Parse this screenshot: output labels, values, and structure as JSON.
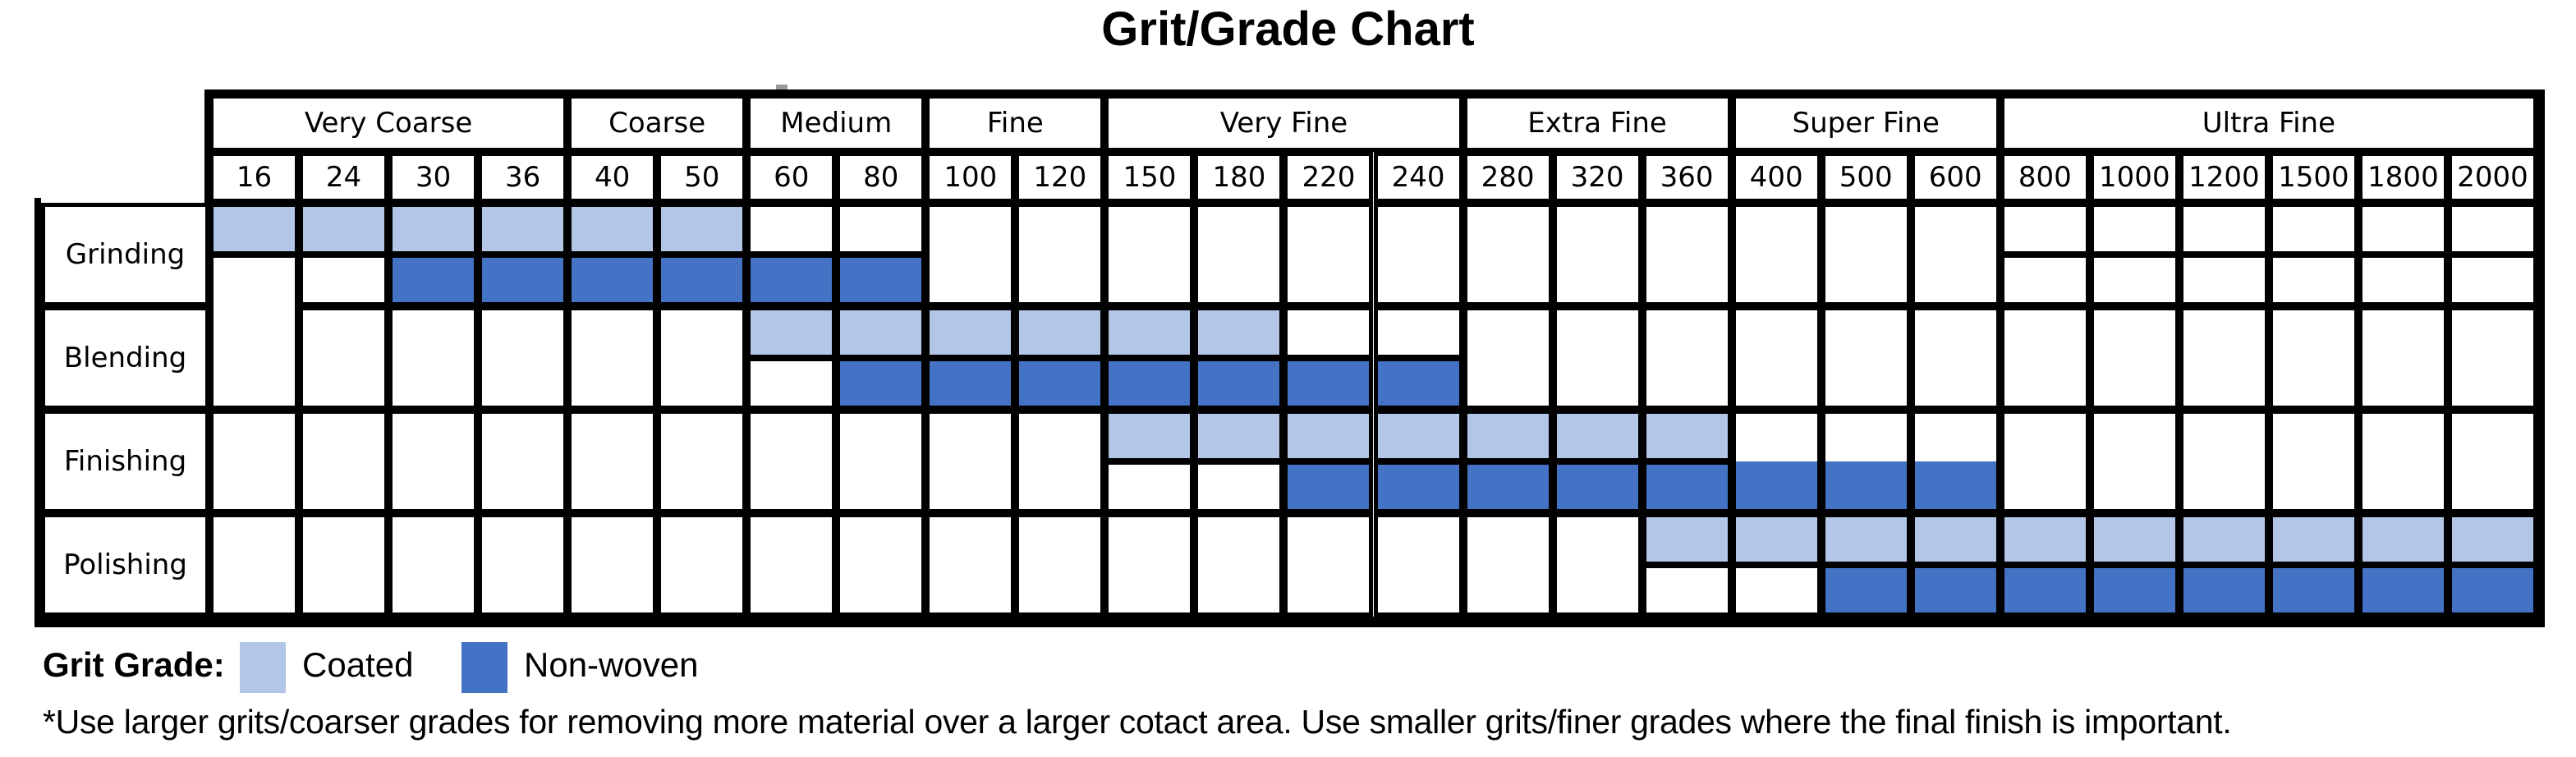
{
  "title": "Grit/Grade Chart",
  "header": {
    "categories": [
      {
        "label": "Very Coarse",
        "grits": [
          16,
          24,
          30,
          36
        ]
      },
      {
        "label": "Coarse",
        "grits": [
          40,
          50
        ]
      },
      {
        "label": "Medium",
        "grits": [
          60,
          80
        ]
      },
      {
        "label": "Fine",
        "grits": [
          100,
          120
        ]
      },
      {
        "label": "Very Fine",
        "grits": [
          150,
          180,
          220,
          240
        ]
      },
      {
        "label": "Extra Fine",
        "grits": [
          280,
          320,
          360
        ]
      },
      {
        "label": "Super Fine",
        "grits": [
          400,
          500,
          600
        ]
      },
      {
        "label": "Ultra Fine",
        "grits": [
          800,
          1000,
          1200,
          1500,
          1800,
          2000
        ]
      }
    ]
  },
  "rows": [
    {
      "label": "Grinding",
      "coated": [
        16,
        24,
        30,
        36,
        40,
        50
      ],
      "non_woven": [
        30,
        36,
        40,
        50,
        60,
        80
      ]
    },
    {
      "label": "Blending",
      "coated": [
        60,
        80,
        100,
        120,
        150,
        180
      ],
      "non_woven": [
        80,
        100,
        120,
        150,
        180,
        220,
        240
      ]
    },
    {
      "label": "Finishing",
      "coated": [
        150,
        180,
        220,
        240,
        280,
        320,
        360
      ],
      "non_woven": [
        220,
        240,
        280,
        320,
        360,
        400,
        500,
        600
      ]
    },
    {
      "label": "Polishing",
      "coated": [
        360,
        400,
        500,
        600,
        800,
        1000,
        1200,
        1500,
        1800,
        2000
      ],
      "non_woven": [
        500,
        600,
        800,
        1000,
        1200,
        1500,
        1800,
        2000
      ]
    }
  ],
  "legend": {
    "label": "Grit Grade:",
    "items": [
      {
        "label": "Coated",
        "color": "#b4c6e7"
      },
      {
        "label": "Non-woven",
        "color": "#4472c4"
      }
    ]
  },
  "footnote": "*Use larger grits/coarser grades for removing more material over a larger cotact area. Use smaller grits/finer grades where the final finish is important.",
  "colors": {
    "coated": "#b4c6e7",
    "non_woven": "#4472c4",
    "border": "#000000",
    "background": "#ffffff"
  },
  "chart_data": {
    "type": "table",
    "title": "Grit/Grade Chart",
    "columns": [
      16,
      24,
      30,
      36,
      40,
      50,
      60,
      80,
      100,
      120,
      150,
      180,
      220,
      240,
      280,
      320,
      360,
      400,
      500,
      600,
      800,
      1000,
      1200,
      1500,
      1800,
      2000
    ],
    "column_groups": [
      {
        "label": "Very Coarse",
        "columns": [
          16,
          24,
          30,
          36
        ]
      },
      {
        "label": "Coarse",
        "columns": [
          40,
          50
        ]
      },
      {
        "label": "Medium",
        "columns": [
          60,
          80
        ]
      },
      {
        "label": "Fine",
        "columns": [
          100,
          120
        ]
      },
      {
        "label": "Very Fine",
        "columns": [
          150,
          180,
          220,
          240
        ]
      },
      {
        "label": "Extra Fine",
        "columns": [
          280,
          320,
          360
        ]
      },
      {
        "label": "Super Fine",
        "columns": [
          400,
          500,
          600
        ]
      },
      {
        "label": "Ultra Fine",
        "columns": [
          800,
          1000,
          1200,
          1500,
          1800,
          2000
        ]
      }
    ],
    "series": [
      {
        "name": "Grinding",
        "coated_range": [
          16,
          50
        ],
        "non_woven_range": [
          30,
          80
        ],
        "coated_grits": [
          16,
          24,
          30,
          36,
          40,
          50
        ],
        "non_woven_grits": [
          30,
          36,
          40,
          50,
          60,
          80
        ]
      },
      {
        "name": "Blending",
        "coated_range": [
          60,
          180
        ],
        "non_woven_range": [
          80,
          240
        ],
        "coated_grits": [
          60,
          80,
          100,
          120,
          150,
          180
        ],
        "non_woven_grits": [
          80,
          100,
          120,
          150,
          180,
          220,
          240
        ]
      },
      {
        "name": "Finishing",
        "coated_range": [
          150,
          360
        ],
        "non_woven_range": [
          220,
          600
        ],
        "coated_grits": [
          150,
          180,
          220,
          240,
          280,
          320,
          360
        ],
        "non_woven_grits": [
          220,
          240,
          280,
          320,
          360,
          400,
          500,
          600
        ]
      },
      {
        "name": "Polishing",
        "coated_range": [
          360,
          2000
        ],
        "non_woven_range": [
          500,
          2000
        ],
        "coated_grits": [
          360,
          400,
          500,
          600,
          800,
          1000,
          1200,
          1500,
          1800,
          2000
        ],
        "non_woven_grits": [
          500,
          600,
          800,
          1000,
          1200,
          1500,
          1800,
          2000
        ]
      }
    ],
    "legend": [
      "Coated",
      "Non-woven"
    ],
    "legend_title": "Grit Grade:",
    "note": "*Use larger grits/coarser grades for removing more material over a larger cotact area. Use smaller grits/finer grades where the final finish is important."
  }
}
